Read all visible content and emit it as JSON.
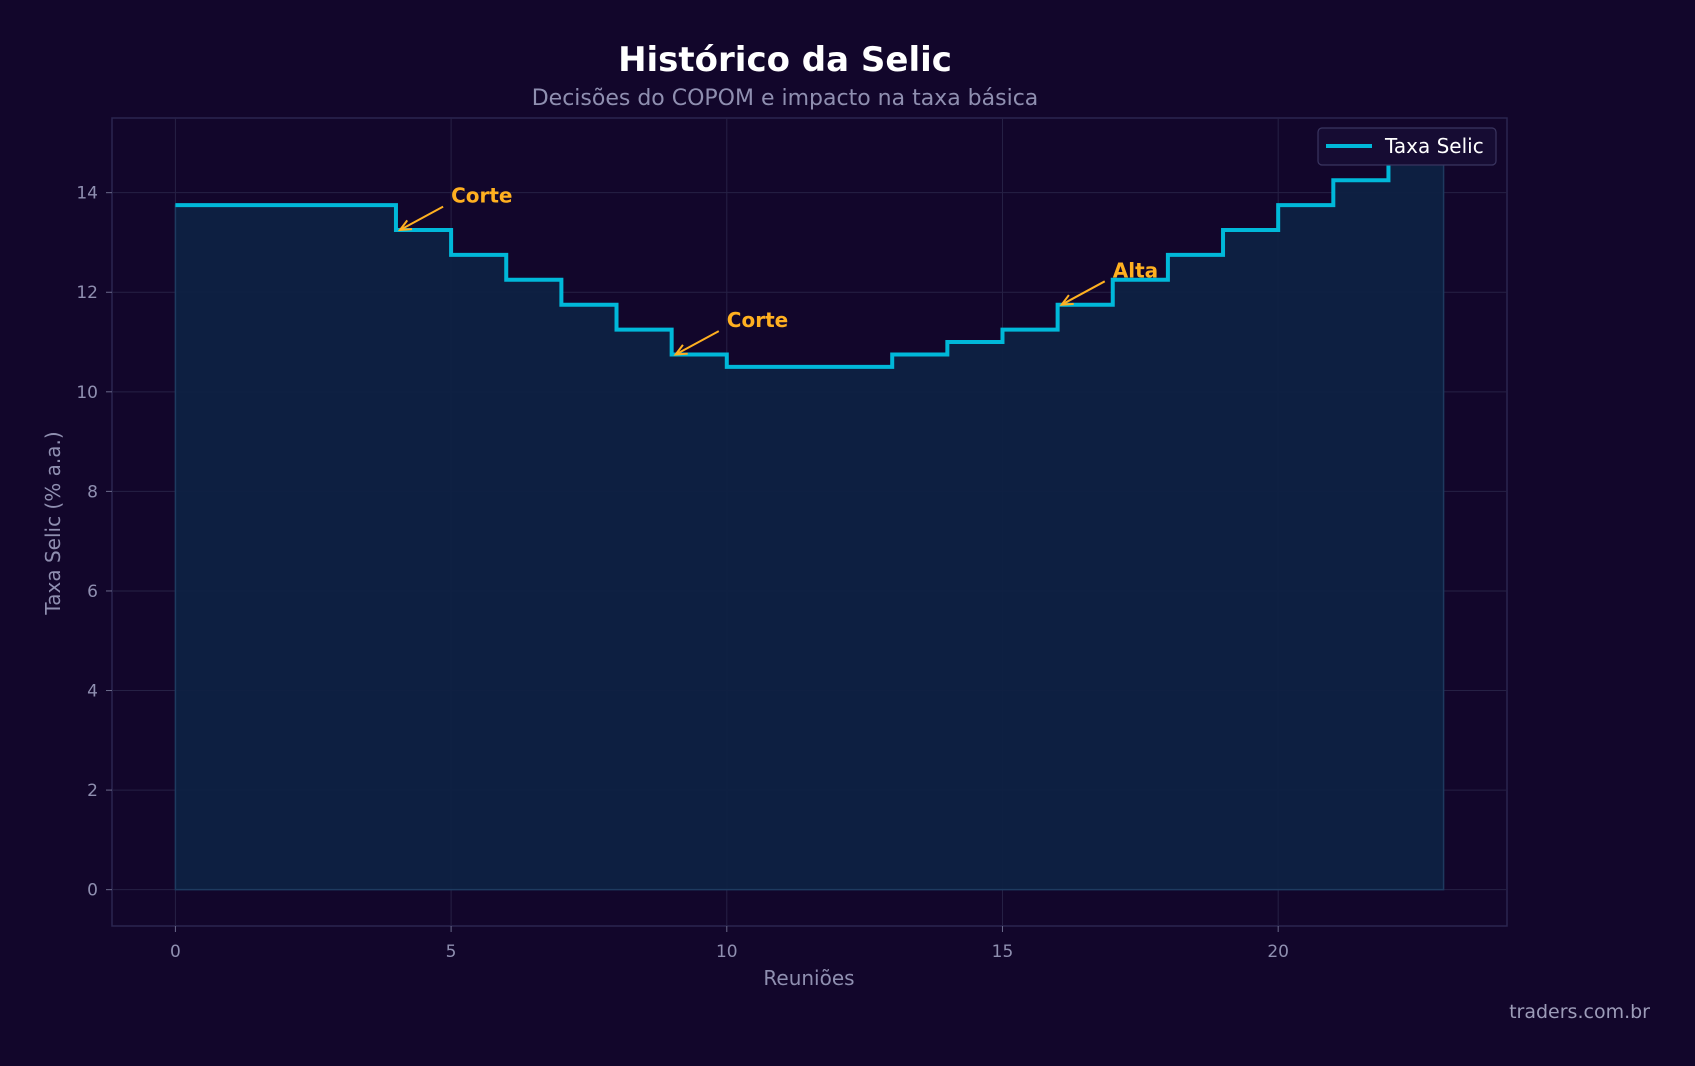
{
  "chart_data": {
    "type": "line",
    "step": true,
    "title": "Histórico da Selic",
    "subtitle": "Decisões do COPOM e impacto na taxa básica",
    "xlabel": "Reuniões",
    "ylabel": "Taxa Selic (% a.a.)",
    "xlim": [
      -1.15,
      24.15
    ],
    "ylim": [
      -0.73,
      15.5
    ],
    "xticks": [
      0,
      5,
      10,
      15,
      20
    ],
    "yticks": [
      0,
      2,
      4,
      6,
      8,
      10,
      12,
      14
    ],
    "grid": true,
    "legend": "top-right",
    "series": [
      {
        "name": "Taxa Selic",
        "color": "#00b8d9",
        "x": [
          0,
          1,
          2,
          3,
          4,
          5,
          6,
          7,
          8,
          9,
          10,
          11,
          12,
          13,
          14,
          15,
          16,
          17,
          18,
          19,
          20,
          21,
          22,
          23
        ],
        "values": [
          13.75,
          13.75,
          13.75,
          13.75,
          13.25,
          12.75,
          12.25,
          11.75,
          11.25,
          10.75,
          10.5,
          10.5,
          10.5,
          10.75,
          11.0,
          11.25,
          11.75,
          12.25,
          12.75,
          13.25,
          13.75,
          14.25,
          14.75,
          14.75
        ]
      }
    ],
    "annotations": [
      {
        "text": "Corte",
        "point": [
          4,
          13.25
        ],
        "text_pos": [
          5,
          13.8
        ]
      },
      {
        "text": "Corte",
        "point": [
          9,
          10.75
        ],
        "text_pos": [
          10,
          11.3
        ]
      },
      {
        "text": "Alta",
        "point": [
          16,
          11.75
        ],
        "text_pos": [
          17,
          12.3
        ]
      }
    ],
    "colors": {
      "background": "#12062b",
      "fill": "#0e2142",
      "line": "#00b8d9",
      "annotation": "#ffb020",
      "grid": "#262145"
    }
  },
  "footer": "traders.com.br"
}
